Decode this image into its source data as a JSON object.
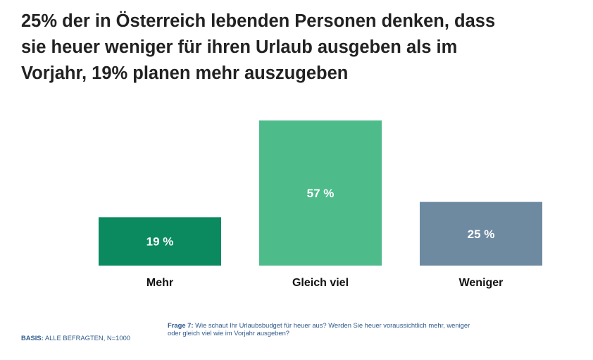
{
  "title_lines": [
    "25% der in Österreich lebenden Personen denken, dass",
    "sie heuer weniger für ihren Urlaub ausgeben als im",
    "Vorjahr, 19% planen mehr auszugeben"
  ],
  "chart_data": {
    "type": "bar",
    "categories": [
      "Mehr",
      "Gleich viel",
      "Weniger"
    ],
    "values": [
      19,
      57,
      25
    ],
    "value_labels": [
      "19 %",
      "57 %",
      "25 %"
    ],
    "colors": [
      "#0a8a5e",
      "#4dbb8a",
      "#6e8aa1"
    ],
    "ylim": [
      0,
      57
    ],
    "grid": false,
    "legend": "none"
  },
  "footnote": {
    "frage_label": "Frage 7:",
    "frage_text": " Wie schaut Ihr Urlaubsbudget für heuer aus? Werden Sie heuer voraussichtlich mehr, weniger oder gleich viel wie im Vorjahr ausgeben?",
    "basis_label": "BASIS:",
    "basis_text": " ALLE BEFRAGTEN, N=1000"
  }
}
